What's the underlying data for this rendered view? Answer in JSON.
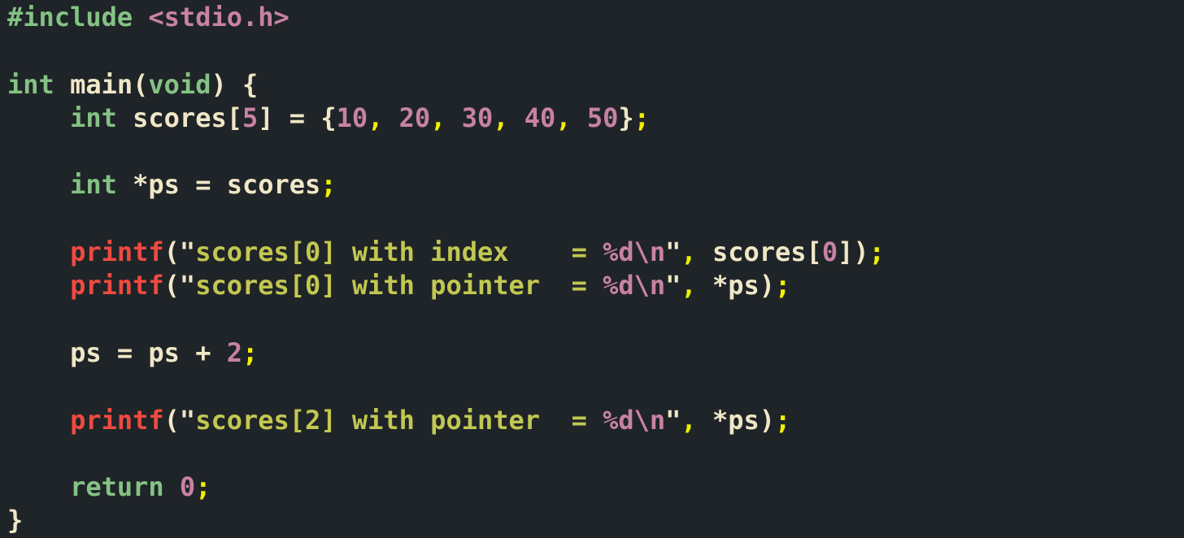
{
  "window": {
    "background": "#1f2428",
    "language": "c"
  },
  "palette": {
    "green": "#84c284",
    "pink": "#c882a2",
    "cream": "#f0e7c7",
    "yellow": "#f1f002",
    "red": "#ef4a40",
    "olive": "#c2c751"
  },
  "code": {
    "lines": [
      [
        [
          "green",
          "#include"
        ],
        [
          "cream",
          " "
        ],
        [
          "pink",
          "<stdio.h>"
        ]
      ],
      [],
      [
        [
          "green",
          "int"
        ],
        [
          "cream",
          " main("
        ],
        [
          "green",
          "void"
        ],
        [
          "cream",
          ") {"
        ]
      ],
      [
        [
          "cream",
          "    "
        ],
        [
          "green",
          "int"
        ],
        [
          "cream",
          " scores["
        ],
        [
          "pink",
          "5"
        ],
        [
          "cream",
          "] = {"
        ],
        [
          "pink",
          "10"
        ],
        [
          "yellow",
          ","
        ],
        [
          "cream",
          " "
        ],
        [
          "pink",
          "20"
        ],
        [
          "yellow",
          ","
        ],
        [
          "cream",
          " "
        ],
        [
          "pink",
          "30"
        ],
        [
          "yellow",
          ","
        ],
        [
          "cream",
          " "
        ],
        [
          "pink",
          "40"
        ],
        [
          "yellow",
          ","
        ],
        [
          "cream",
          " "
        ],
        [
          "pink",
          "50"
        ],
        [
          "cream",
          "}"
        ],
        [
          "yellow",
          ";"
        ]
      ],
      [],
      [
        [
          "cream",
          "    "
        ],
        [
          "green",
          "int"
        ],
        [
          "cream",
          " *ps = scores"
        ],
        [
          "yellow",
          ";"
        ]
      ],
      [],
      [
        [
          "cream",
          "    "
        ],
        [
          "red",
          "printf"
        ],
        [
          "cream",
          "(\""
        ],
        [
          "olive",
          "scores[0] with index    = "
        ],
        [
          "pink",
          "%d\\n"
        ],
        [
          "cream",
          "\""
        ],
        [
          "yellow",
          ","
        ],
        [
          "cream",
          " scores["
        ],
        [
          "pink",
          "0"
        ],
        [
          "cream",
          "])"
        ],
        [
          "yellow",
          ";"
        ]
      ],
      [
        [
          "cream",
          "    "
        ],
        [
          "red",
          "printf"
        ],
        [
          "cream",
          "(\""
        ],
        [
          "olive",
          "scores[0] with pointer  = "
        ],
        [
          "pink",
          "%d\\n"
        ],
        [
          "cream",
          "\""
        ],
        [
          "yellow",
          ","
        ],
        [
          "cream",
          " *ps)"
        ],
        [
          "yellow",
          ";"
        ]
      ],
      [],
      [
        [
          "cream",
          "    ps = ps + "
        ],
        [
          "pink",
          "2"
        ],
        [
          "yellow",
          ";"
        ]
      ],
      [],
      [
        [
          "cream",
          "    "
        ],
        [
          "red",
          "printf"
        ],
        [
          "cream",
          "(\""
        ],
        [
          "olive",
          "scores[2] with pointer  = "
        ],
        [
          "pink",
          "%d\\n"
        ],
        [
          "cream",
          "\""
        ],
        [
          "yellow",
          ","
        ],
        [
          "cream",
          " *ps)"
        ],
        [
          "yellow",
          ";"
        ]
      ],
      [],
      [
        [
          "cream",
          "    "
        ],
        [
          "green",
          "return"
        ],
        [
          "cream",
          " "
        ],
        [
          "pink",
          "0"
        ],
        [
          "yellow",
          ";"
        ]
      ],
      [
        [
          "cream",
          "}"
        ]
      ]
    ]
  }
}
